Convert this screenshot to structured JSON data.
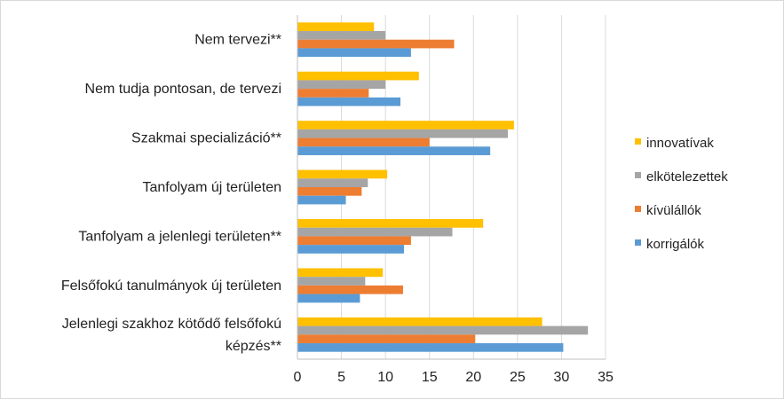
{
  "chart_data": {
    "type": "bar",
    "orientation": "horizontal",
    "categories": [
      [
        "Nem tervezi**"
      ],
      [
        "Nem tudja pontosan, de tervezi"
      ],
      [
        "Szakmai specializáció**"
      ],
      [
        "Tanfolyam új területen"
      ],
      [
        "Tanfolyam a jelenlegi területen**"
      ],
      [
        "Felsőfokú tanulmányok új területen"
      ],
      [
        "Jelenlegi szakhoz kötődő felsőfokú",
        "képzés**"
      ]
    ],
    "series": [
      {
        "name": "innovatívak",
        "color": "#ffc000",
        "values": [
          8.7,
          13.8,
          24.6,
          10.2,
          21.1,
          9.7,
          27.8
        ]
      },
      {
        "name": "elkötelezettek",
        "color": "#a5a5a5",
        "values": [
          10.0,
          10.0,
          23.9,
          8.0,
          17.6,
          7.7,
          33.0
        ]
      },
      {
        "name": "kívülállók",
        "color": "#ed7d31",
        "values": [
          17.8,
          8.1,
          15.0,
          7.3,
          12.9,
          12.0,
          20.2
        ]
      },
      {
        "name": "korrigálók",
        "color": "#5b9bd5",
        "values": [
          12.9,
          11.7,
          21.9,
          5.5,
          12.1,
          7.1,
          30.2
        ]
      }
    ],
    "xlim": [
      0,
      35
    ],
    "xticks": [
      "0",
      "5",
      "10",
      "15",
      "20",
      "25",
      "30",
      "35"
    ],
    "legend_position": "right",
    "title": "",
    "xlabel": "",
    "ylabel": ""
  }
}
